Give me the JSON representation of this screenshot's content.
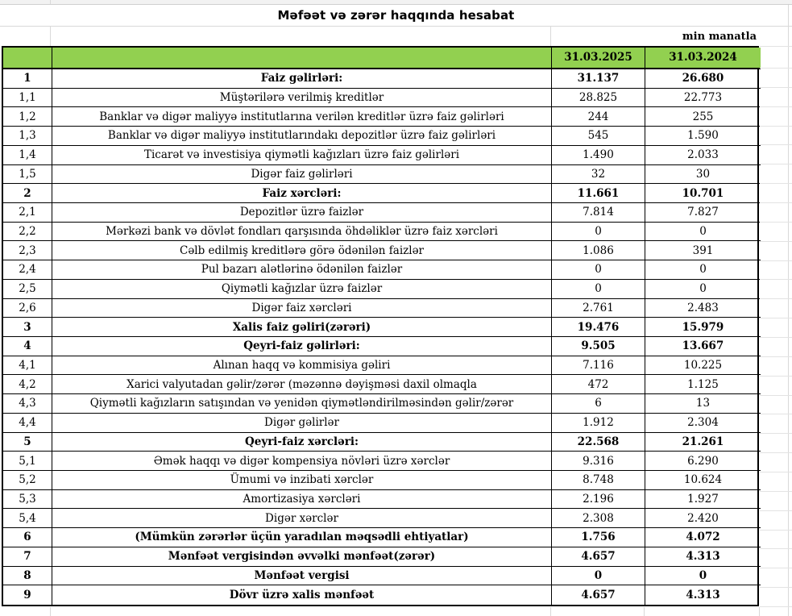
{
  "sheet": {
    "title": "Məfəət və zərər haqqında hesabat",
    "unit_note": "min manatla",
    "columns": {
      "number": "",
      "description": "",
      "col2025": "31.03.2025",
      "col2024": "31.03.2024"
    },
    "colors": {
      "header_bg": "#92D050",
      "table_border": "#000000",
      "gridline": "#D9D9D9"
    }
  },
  "table": {
    "rows": [
      {
        "num": "1",
        "label": "Faiz gəlirləri:",
        "v2025": "31.137",
        "v2024": "26.680",
        "bold": true
      },
      {
        "num": "1,1",
        "label": "Müştərilərə verilmiş kreditlər",
        "v2025": "28.825",
        "v2024": "22.773",
        "bold": false
      },
      {
        "num": "1,2",
        "label": "Banklar və digər maliyyə institutlarına verilən kreditlər üzrə faiz gəlirləri",
        "v2025": "244",
        "v2024": "255",
        "bold": false
      },
      {
        "num": "1,3",
        "label": "Banklar və digər maliyyə institutlarındakı depozitlər üzrə faiz gəlirləri",
        "v2025": "545",
        "v2024": "1.590",
        "bold": false
      },
      {
        "num": "1,4",
        "label": "Ticarət və investisiya qiymətli kağızları üzrə faiz gəlirləri",
        "v2025": "1.490",
        "v2024": "2.033",
        "bold": false
      },
      {
        "num": "1,5",
        "label": "Digər faiz gəlirləri",
        "v2025": "32",
        "v2024": "30",
        "bold": false
      },
      {
        "num": "2",
        "label": "Faiz xərcləri:",
        "v2025": "11.661",
        "v2024": "10.701",
        "bold": true
      },
      {
        "num": "2,1",
        "label": "Depozitlər üzrə faizlər",
        "v2025": "7.814",
        "v2024": "7.827",
        "bold": false
      },
      {
        "num": "2,2",
        "label": "Mərkəzi bank və dövlət fondları qarşısında öhdəliklər üzrə faiz xərcləri",
        "v2025": "0",
        "v2024": "0",
        "bold": false
      },
      {
        "num": "2,3",
        "label": "Cəlb edilmiş kreditlərə görə ödənilən faizlər",
        "v2025": "1.086",
        "v2024": "391",
        "bold": false
      },
      {
        "num": "2,4",
        "label": "Pul bazarı alətlərinə ödənilən faizlər",
        "v2025": "0",
        "v2024": "0",
        "bold": false
      },
      {
        "num": "2,5",
        "label": "Qiymətli kağızlar üzrə faizlər",
        "v2025": "0",
        "v2024": "0",
        "bold": false
      },
      {
        "num": "2,6",
        "label": "Digər faiz xərcləri",
        "v2025": "2.761",
        "v2024": "2.483",
        "bold": false
      },
      {
        "num": "3",
        "label": "Xalis faiz gəliri(zərəri)",
        "v2025": "19.476",
        "v2024": "15.979",
        "bold": true
      },
      {
        "num": "4",
        "label": "Qeyri-faiz gəlirləri:",
        "v2025": "9.505",
        "v2024": "13.667",
        "bold": true
      },
      {
        "num": "4,1",
        "label": "Alınan haqq və kommisiya gəliri",
        "v2025": "7.116",
        "v2024": "10.225",
        "bold": false
      },
      {
        "num": "4,2",
        "label": "Xarici valyutadan gəlir/zərər (məzənnə dəyişməsi daxil olmaqla",
        "v2025": "472",
        "v2024": "1.125",
        "bold": false
      },
      {
        "num": "4,3",
        "label": "Qiymətli kağızların satışından və yenidən qiymətləndirilməsindən gəlir/zərər",
        "v2025": "6",
        "v2024": "13",
        "bold": false
      },
      {
        "num": "4,4",
        "label": "Digər gəlirlər",
        "v2025": "1.912",
        "v2024": "2.304",
        "bold": false
      },
      {
        "num": "5",
        "label": "Qeyri-faiz xərcləri:",
        "v2025": "22.568",
        "v2024": "21.261",
        "bold": true
      },
      {
        "num": "5,1",
        "label": "Əmək haqqı və digər kompensiya növləri üzrə xərclər",
        "v2025": "9.316",
        "v2024": "6.290",
        "bold": false
      },
      {
        "num": "5,2",
        "label": "Ümumi və inzibati xərclər",
        "v2025": "8.748",
        "v2024": "10.624",
        "bold": false
      },
      {
        "num": "5,3",
        "label": "Amortizasiya xərcləri",
        "v2025": "2.196",
        "v2024": "1.927",
        "bold": false
      },
      {
        "num": "5,4",
        "label": "Digər xərclər",
        "v2025": "2.308",
        "v2024": "2.420",
        "bold": false
      },
      {
        "num": "6",
        "label": "(Mümkün zərərlər üçün yaradılan məqsədli ehtiyatlar)",
        "v2025": "1.756",
        "v2024": "4.072",
        "bold": true
      },
      {
        "num": "7",
        "label": "Mənfəət vergisindən əvvəlki mənfəət(zərər)",
        "v2025": "4.657",
        "v2024": "4.313",
        "bold": true
      },
      {
        "num": "8",
        "label": "Mənfəət vergisi",
        "v2025": "0",
        "v2024": "0",
        "bold": true
      },
      {
        "num": "9",
        "label": "Dövr üzrə xalis mənfəət",
        "v2025": "4.657",
        "v2024": "4.313",
        "bold": true
      }
    ]
  }
}
